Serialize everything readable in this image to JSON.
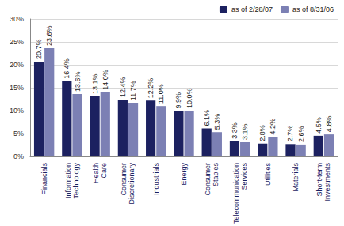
{
  "chart_data": {
    "type": "bar",
    "categories": [
      "Financials",
      "Information Technology",
      "Health Care",
      "Consumer Discretionary",
      "Industrials",
      "Energy",
      "Consumer Staples",
      "Telecommunication Services",
      "Utilities",
      "Materials",
      "Short-term Investments"
    ],
    "series": [
      {
        "name": "as of 2/28/07",
        "color": "#1c2160",
        "values": [
          20.7,
          16.4,
          13.1,
          12.4,
          12.2,
          9.9,
          6.1,
          3.3,
          2.8,
          2.7,
          4.5
        ],
        "value_labels": [
          "20.7%",
          "16.4%",
          "13.1%",
          "12.4%",
          "12.2%",
          "9.9%",
          "6.1%",
          "3.3%",
          "2.8%",
          "2.7%",
          "4.5%"
        ]
      },
      {
        "name": "as of 8/31/06",
        "color": "#7c80b4",
        "values": [
          23.6,
          13.6,
          14.0,
          11.7,
          11.0,
          10.0,
          5.3,
          3.1,
          4.2,
          2.6,
          4.8
        ],
        "value_labels": [
          "23.6%",
          "13.6%",
          "14.0%",
          "11.7%",
          "11.0%",
          "10.0%",
          "5.3%",
          "3.1%",
          "4.2%",
          "2.6%",
          "4.8%"
        ]
      }
    ],
    "ylim": [
      0,
      30
    ],
    "yticks": [
      {
        "value": 0,
        "label": "0%"
      },
      {
        "value": 5,
        "label": "5%"
      },
      {
        "value": 10,
        "label": "10%"
      },
      {
        "value": 15,
        "label": "15%"
      },
      {
        "value": 20,
        "label": "20%"
      },
      {
        "value": 25,
        "label": "25%"
      },
      {
        "value": 30,
        "label": "30%"
      }
    ],
    "grid": true,
    "legend": "top-right",
    "data_labels": true
  }
}
